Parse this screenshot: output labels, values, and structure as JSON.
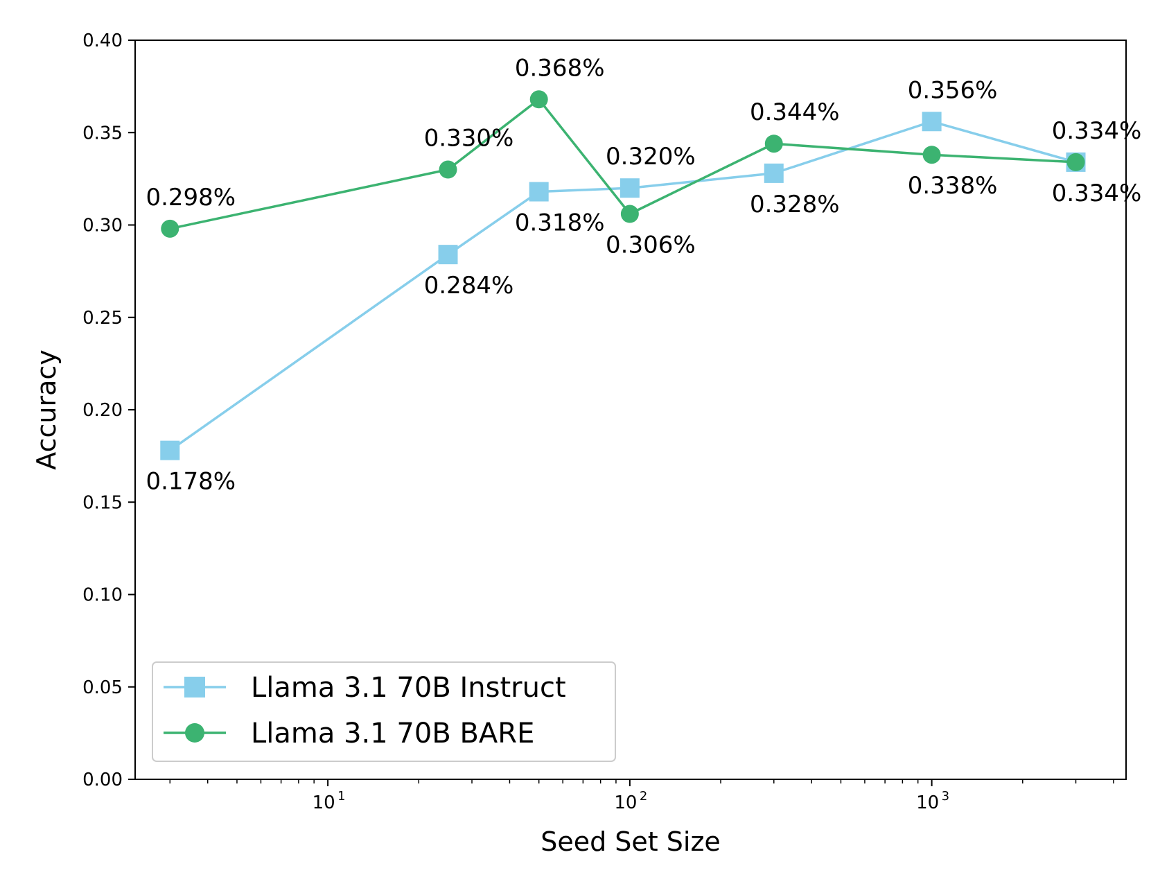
{
  "chart_data": {
    "type": "line",
    "title": "",
    "xlabel": "Seed Set Size",
    "ylabel": "Accuracy",
    "xscale": "log",
    "xlim": [
      2.3,
      4400
    ],
    "ylim": [
      0,
      0.4
    ],
    "yticks": [
      "0.00",
      "0.05",
      "0.10",
      "0.15",
      "0.20",
      "0.25",
      "0.30",
      "0.35",
      "0.40"
    ],
    "xticks": [
      {
        "value": 10,
        "base": "10",
        "exp": "1"
      },
      {
        "value": 100,
        "base": "10",
        "exp": "2"
      },
      {
        "value": 1000,
        "base": "10",
        "exp": "3"
      }
    ],
    "x": [
      3,
      25,
      50,
      100,
      300,
      1000,
      3000
    ],
    "legend_position": "bottom-left",
    "series": [
      {
        "name": "Llama 3.1 70B Instruct",
        "color": "#87ceeb",
        "marker": "square",
        "values": [
          0.178,
          0.284,
          0.318,
          0.32,
          0.328,
          0.356,
          0.334
        ],
        "labels": [
          "0.178%",
          "0.284%",
          "0.318%",
          "0.320%",
          "0.328%",
          "0.356%",
          "0.334%"
        ],
        "label_side": [
          "below",
          "below",
          "below",
          "above",
          "below",
          "above",
          "above"
        ]
      },
      {
        "name": "Llama 3.1 70B BARE",
        "color": "#3cb371",
        "marker": "circle",
        "values": [
          0.298,
          0.33,
          0.368,
          0.306,
          0.344,
          0.338,
          0.334
        ],
        "labels": [
          "0.298%",
          "0.330%",
          "0.368%",
          "0.306%",
          "0.344%",
          "0.338%",
          "0.334%"
        ],
        "label_side": [
          "above",
          "above",
          "above",
          "below",
          "above",
          "below",
          "below"
        ]
      }
    ]
  }
}
